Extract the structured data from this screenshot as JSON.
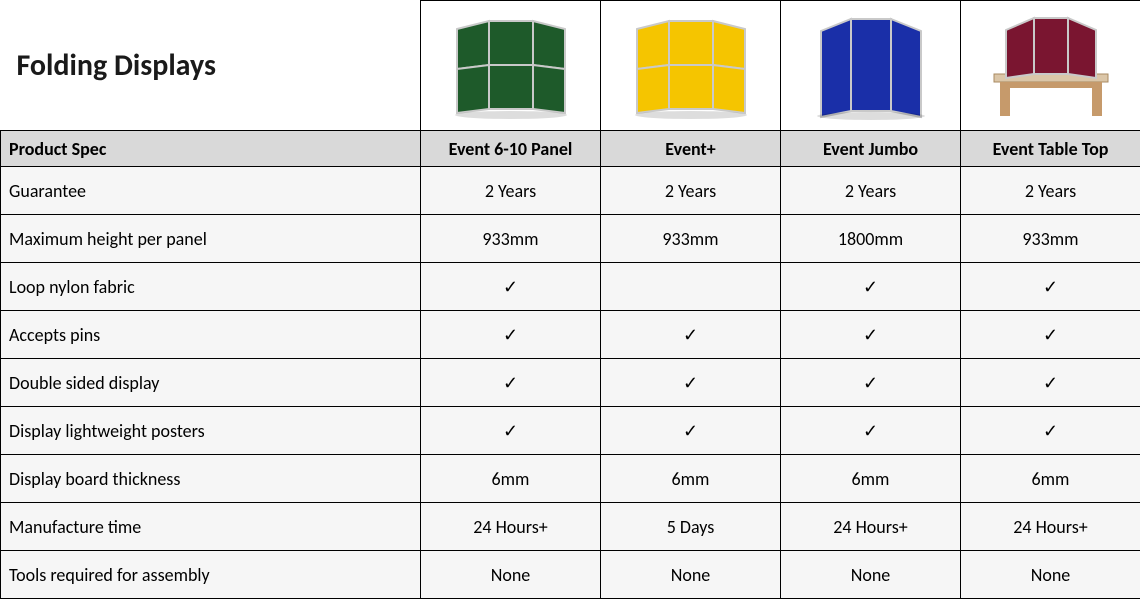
{
  "title": "Folding Displays",
  "header_label": "Product Spec",
  "products": [
    {
      "name": "Event 6-10 Panel",
      "svg_key": "panel6",
      "color": "#1e5a2a"
    },
    {
      "name": "Event+",
      "svg_key": "panel6",
      "color": "#f5c500"
    },
    {
      "name": "Event Jumbo",
      "svg_key": "jumbo",
      "color": "#1a2fa8"
    },
    {
      "name": "Event Table Top",
      "svg_key": "tabletop",
      "color": "#7a1530"
    }
  ],
  "check_mark": "✓",
  "specs": [
    {
      "label": "Guarantee",
      "values": [
        "2 Years",
        "2 Years",
        "2 Years",
        "2 Years"
      ]
    },
    {
      "label": "Maximum height per panel",
      "values": [
        "933mm",
        "933mm",
        "1800mm",
        "933mm"
      ]
    },
    {
      "label": "Loop nylon fabric",
      "values": [
        "✓",
        "",
        "✓",
        "✓"
      ]
    },
    {
      "label": "Accepts pins",
      "values": [
        "✓",
        "✓",
        "✓",
        "✓"
      ]
    },
    {
      "label": "Double sided display",
      "values": [
        "✓",
        "✓",
        "✓",
        "✓"
      ]
    },
    {
      "label": "Display lightweight posters",
      "values": [
        "✓",
        "✓",
        "✓",
        "✓"
      ]
    },
    {
      "label": "Display board thickness",
      "values": [
        "6mm",
        "6mm",
        "6mm",
        "6mm"
      ]
    },
    {
      "label": "Manufacture time",
      "values": [
        "24 Hours+",
        "5 Days",
        "24 Hours+",
        "24 Hours+"
      ]
    },
    {
      "label": "Tools required for assembly",
      "values": [
        "None",
        "None",
        "None",
        "None"
      ]
    }
  ],
  "style": {
    "frame_color": "#c9c9c9",
    "table_color": "#c69a6b",
    "table_top_color": "#dbc6a8"
  }
}
